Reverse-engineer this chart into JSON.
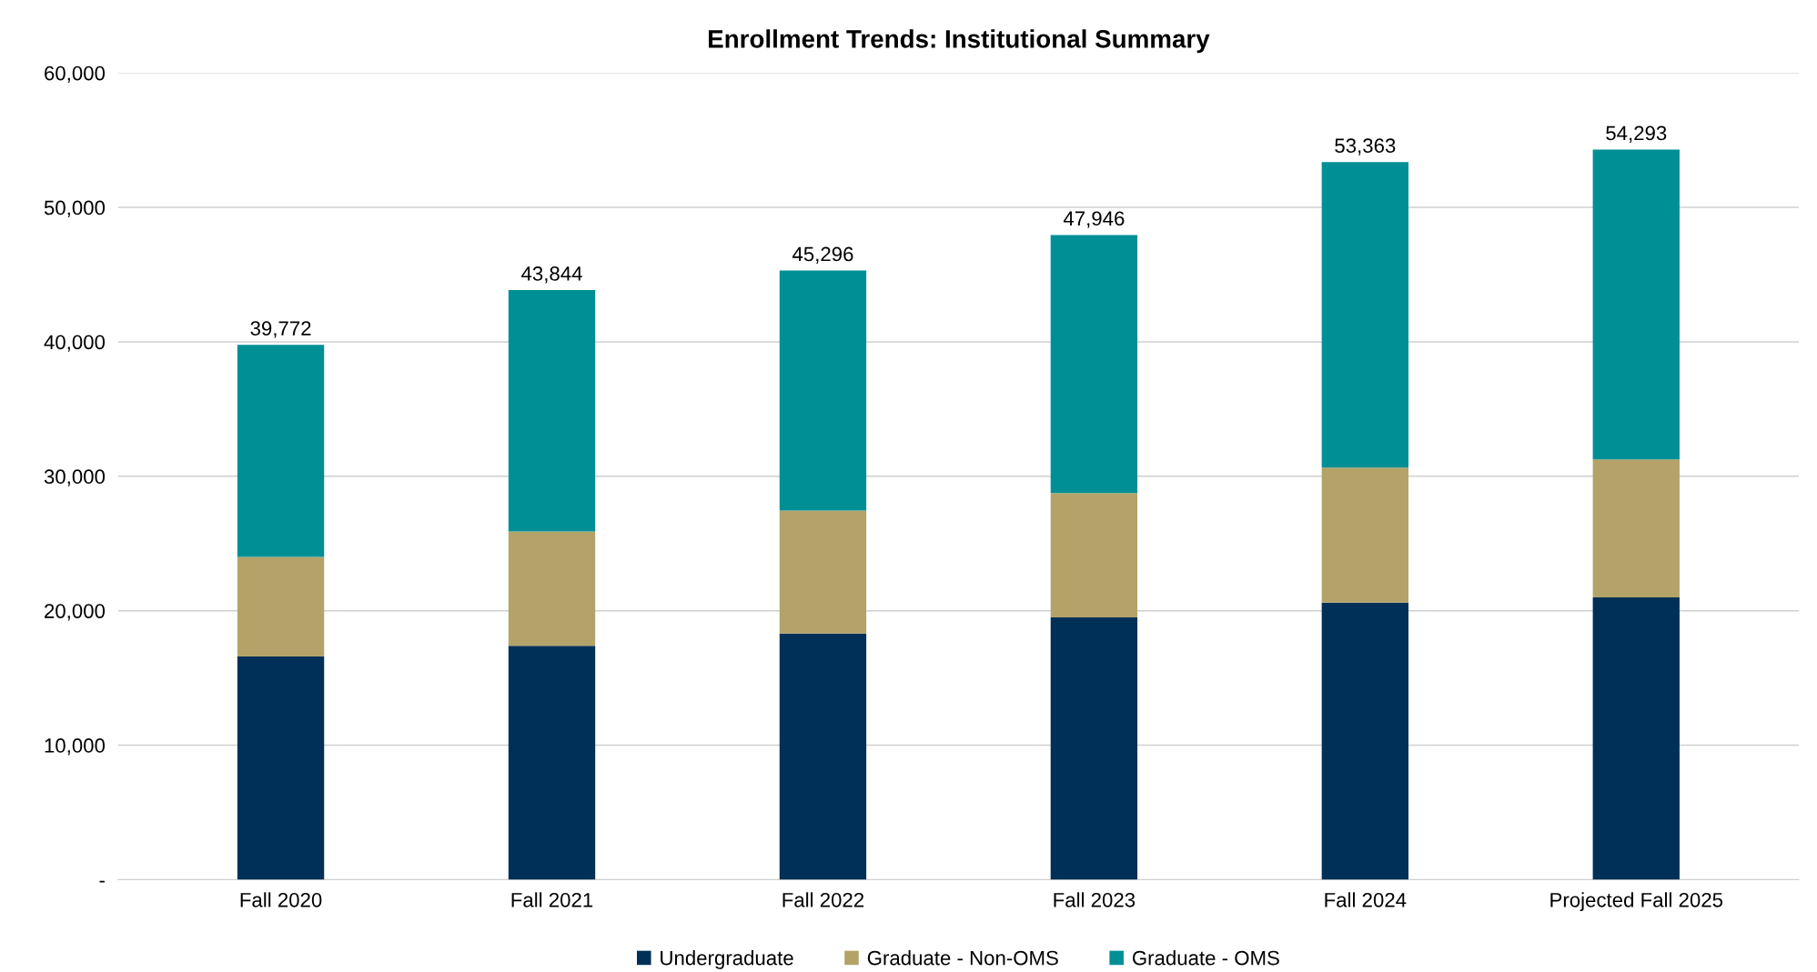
{
  "chart_data": {
    "type": "bar",
    "title": "Enrollment Trends: Institutional Summary",
    "stacked": true,
    "categories": [
      "Fall 2020",
      "Fall 2021",
      "Fall 2022",
      "Fall 2023",
      "Fall 2024",
      "Projected Fall 2025"
    ],
    "series": [
      {
        "name": "Undergraduate",
        "color": "#003057",
        "values": [
          16600,
          17400,
          18300,
          19500,
          20600,
          21000
        ]
      },
      {
        "name": "Graduate - Non-OMS",
        "color": "#b3a369",
        "values": [
          7400,
          8500,
          9150,
          9250,
          10050,
          10250
        ]
      },
      {
        "name": "Graduate - OMS",
        "color": "#008f95",
        "values": [
          15772,
          17944,
          17846,
          19196,
          22713,
          23043
        ]
      }
    ],
    "totals": [
      "39,772",
      "43,844",
      "45,296",
      "47,946",
      "53,363",
      "54,293"
    ],
    "ylim": [
      0,
      60000
    ],
    "yticks": [
      {
        "value": 0,
        "label": "-"
      },
      {
        "value": 10000,
        "label": "10,000"
      },
      {
        "value": 20000,
        "label": "20,000"
      },
      {
        "value": 30000,
        "label": "30,000"
      },
      {
        "value": 40000,
        "label": "40,000"
      },
      {
        "value": 50000,
        "label": "50,000"
      },
      {
        "value": 60000,
        "label": "60,000"
      }
    ],
    "grid": "y",
    "legend": "bottom"
  }
}
